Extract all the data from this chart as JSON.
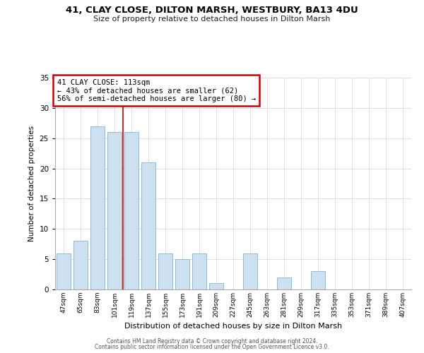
{
  "title1": "41, CLAY CLOSE, DILTON MARSH, WESTBURY, BA13 4DU",
  "title2": "Size of property relative to detached houses in Dilton Marsh",
  "xlabel": "Distribution of detached houses by size in Dilton Marsh",
  "ylabel": "Number of detached properties",
  "bar_labels": [
    "47sqm",
    "65sqm",
    "83sqm",
    "101sqm",
    "119sqm",
    "137sqm",
    "155sqm",
    "173sqm",
    "191sqm",
    "209sqm",
    "227sqm",
    "245sqm",
    "263sqm",
    "281sqm",
    "299sqm",
    "317sqm",
    "335sqm",
    "353sqm",
    "371sqm",
    "389sqm",
    "407sqm"
  ],
  "bar_values": [
    6,
    8,
    27,
    26,
    26,
    21,
    6,
    5,
    6,
    1,
    0,
    6,
    0,
    2,
    0,
    3,
    0,
    0,
    0,
    0,
    0
  ],
  "bar_color": "#cce0f0",
  "bar_edge_color": "#8fbcd4",
  "annotation_line1": "41 CLAY CLOSE: 113sqm",
  "annotation_line2": "← 43% of detached houses are smaller (62)",
  "annotation_line3": "56% of semi-detached houses are larger (80) →",
  "annotation_box_color": "#ffffff",
  "annotation_box_edge": "#cc0000",
  "line_color": "#cc0000",
  "ylim": [
    0,
    35
  ],
  "yticks": [
    0,
    5,
    10,
    15,
    20,
    25,
    30,
    35
  ],
  "footer1": "Contains HM Land Registry data © Crown copyright and database right 2024.",
  "footer2": "Contains public sector information licensed under the Open Government Licence v3.0.",
  "background_color": "#ffffff",
  "grid_color": "#d8d8d8"
}
